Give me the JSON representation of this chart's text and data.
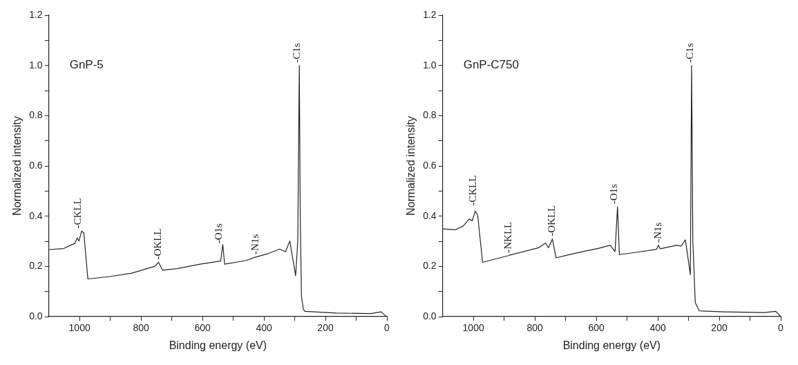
{
  "chart_data": [
    {
      "type": "line",
      "xlabel": "Binding energy (eV)",
      "ylabel": "Normalized intensity",
      "xlim": [
        1100,
        0
      ],
      "ylim": [
        0,
        1.2
      ],
      "xticks": [
        1000,
        {
          "value": 900,
          "label": null
        },
        800,
        {
          "value": 700,
          "label": null
        },
        600,
        {
          "value": 500,
          "label": null
        },
        400,
        {
          "value": 300,
          "label": null
        },
        200,
        {
          "value": 100,
          "label": null
        },
        0
      ],
      "yticks": [
        {
          "value": 0,
          "label": "0.0"
        },
        {
          "value": 0.1,
          "label": null
        },
        0.2,
        {
          "value": 0.3,
          "label": null
        },
        0.4,
        {
          "value": 0.5,
          "label": null
        },
        0.6,
        {
          "value": 0.7,
          "label": null
        },
        0.8,
        {
          "value": 0.9,
          "label": null
        },
        {
          "value": 1.0,
          "label": "1.0"
        },
        {
          "value": 1.1,
          "label": null
        },
        1.2
      ],
      "series": [
        {
          "color": "#222222",
          "line_style": "solid",
          "x": [
            1100,
            1052,
            1015,
            1008,
            1002,
            993,
            986,
            973,
            904,
            830,
            756,
            743,
            730,
            682,
            608,
            541,
            534,
            528,
            460,
            427,
            386,
            349,
            330,
            316,
            297,
            290,
            285,
            282,
            278,
            272,
            267,
            164,
            53,
            19,
            4,
            0
          ],
          "values": [
            0.267,
            0.271,
            0.292,
            0.313,
            0.301,
            0.341,
            0.333,
            0.15,
            0.159,
            0.173,
            0.2,
            0.216,
            0.185,
            0.191,
            0.209,
            0.221,
            0.287,
            0.209,
            0.223,
            0.237,
            0.251,
            0.269,
            0.258,
            0.301,
            0.163,
            0.3,
            1.0,
            0.4,
            0.08,
            0.03,
            0.021,
            0.014,
            0.012,
            0.019,
            0.003,
            0.0
          ]
        }
      ],
      "annotations": [
        "GnP-5",
        {
          "text": "-CKLL",
          "x": 1004,
          "y": 0.34
        },
        {
          "text": "-OKLL",
          "x": 743,
          "y": 0.216
        },
        {
          "text": "-O1s",
          "x": 545,
          "y": 0.28
        },
        {
          "text": "-N1s",
          "x": 427,
          "y": 0.237
        },
        {
          "text": "-C1s",
          "x": 291,
          "y": 1.0
        }
      ]
    },
    {
      "type": "line",
      "xlabel": "Binding energy (eV)",
      "ylabel": "Normalized intensity",
      "xlim": [
        1100,
        0
      ],
      "ylim": [
        0,
        1.2
      ],
      "xticks": [
        1000,
        {
          "value": 900,
          "label": null
        },
        800,
        {
          "value": 700,
          "label": null
        },
        600,
        {
          "value": 500,
          "label": null
        },
        400,
        {
          "value": 300,
          "label": null
        },
        200,
        {
          "value": 100,
          "label": null
        },
        0
      ],
      "yticks": [
        {
          "value": 0,
          "label": "0.0"
        },
        {
          "value": 0.1,
          "label": null
        },
        0.2,
        {
          "value": 0.3,
          "label": null
        },
        0.4,
        {
          "value": 0.5,
          "label": null
        },
        0.6,
        {
          "value": 0.7,
          "label": null
        },
        0.8,
        {
          "value": 0.9,
          "label": null
        },
        {
          "value": 1.0,
          "label": "1.0"
        },
        {
          "value": 1.1,
          "label": null
        },
        1.2
      ],
      "series": [
        {
          "color": "#222222",
          "line_style": "solid",
          "x": [
            1100,
            1058,
            1033,
            1013,
            1004,
            994,
            986,
            970,
            886,
            878,
            788,
            765,
            756,
            743,
            731,
            674,
            592,
            555,
            539,
            531,
            525,
            470,
            404,
            398,
            392,
            339,
            324,
            310,
            294,
            290,
            286,
            278,
            265,
            184,
            53,
            16,
            0
          ],
          "values": [
            0.349,
            0.346,
            0.361,
            0.389,
            0.381,
            0.42,
            0.404,
            0.216,
            0.243,
            0.246,
            0.274,
            0.293,
            0.274,
            0.309,
            0.234,
            0.251,
            0.272,
            0.284,
            0.259,
            0.437,
            0.247,
            0.256,
            0.268,
            0.284,
            0.27,
            0.284,
            0.281,
            0.305,
            0.167,
            1.0,
            0.3,
            0.056,
            0.023,
            0.019,
            0.016,
            0.021,
            0.0
          ]
        }
      ],
      "annotations": [
        "GnP-C750",
        {
          "text": "-CKLL",
          "x": 1000,
          "y": 0.43
        },
        {
          "text": "-NKLL",
          "x": 886,
          "y": 0.243
        },
        {
          "text": "-OKLL",
          "x": 743,
          "y": 0.309
        },
        {
          "text": "-O1s",
          "x": 542,
          "y": 0.437
        },
        {
          "text": "-N1s",
          "x": 398,
          "y": 0.284
        },
        {
          "text": "-C1s",
          "x": 295,
          "y": 1.0
        }
      ]
    }
  ]
}
